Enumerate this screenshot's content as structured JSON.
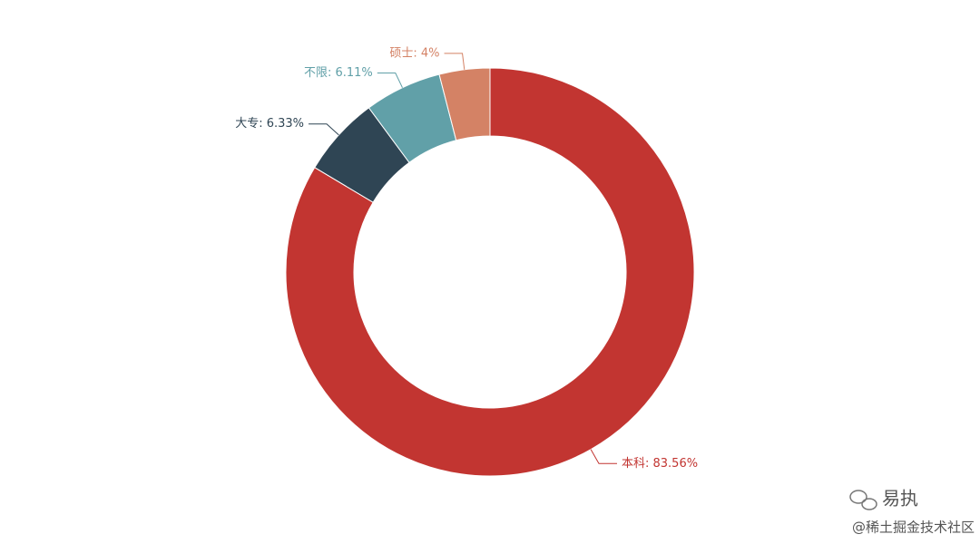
{
  "chart_data": {
    "type": "pie",
    "categories": [
      "本科",
      "大专",
      "不限",
      "硕士"
    ],
    "values": [
      83.56,
      6.33,
      6.11,
      4
    ],
    "value_labels": [
      "本科: 83.56%",
      "大专: 6.33%",
      "不限: 6.11%",
      "硕士: 4%"
    ],
    "colors": [
      "#c23531",
      "#2f4554",
      "#61a0a8",
      "#d48265"
    ]
  },
  "watermark": {
    "account": "易执",
    "site": "@稀土掘金技术社区"
  }
}
